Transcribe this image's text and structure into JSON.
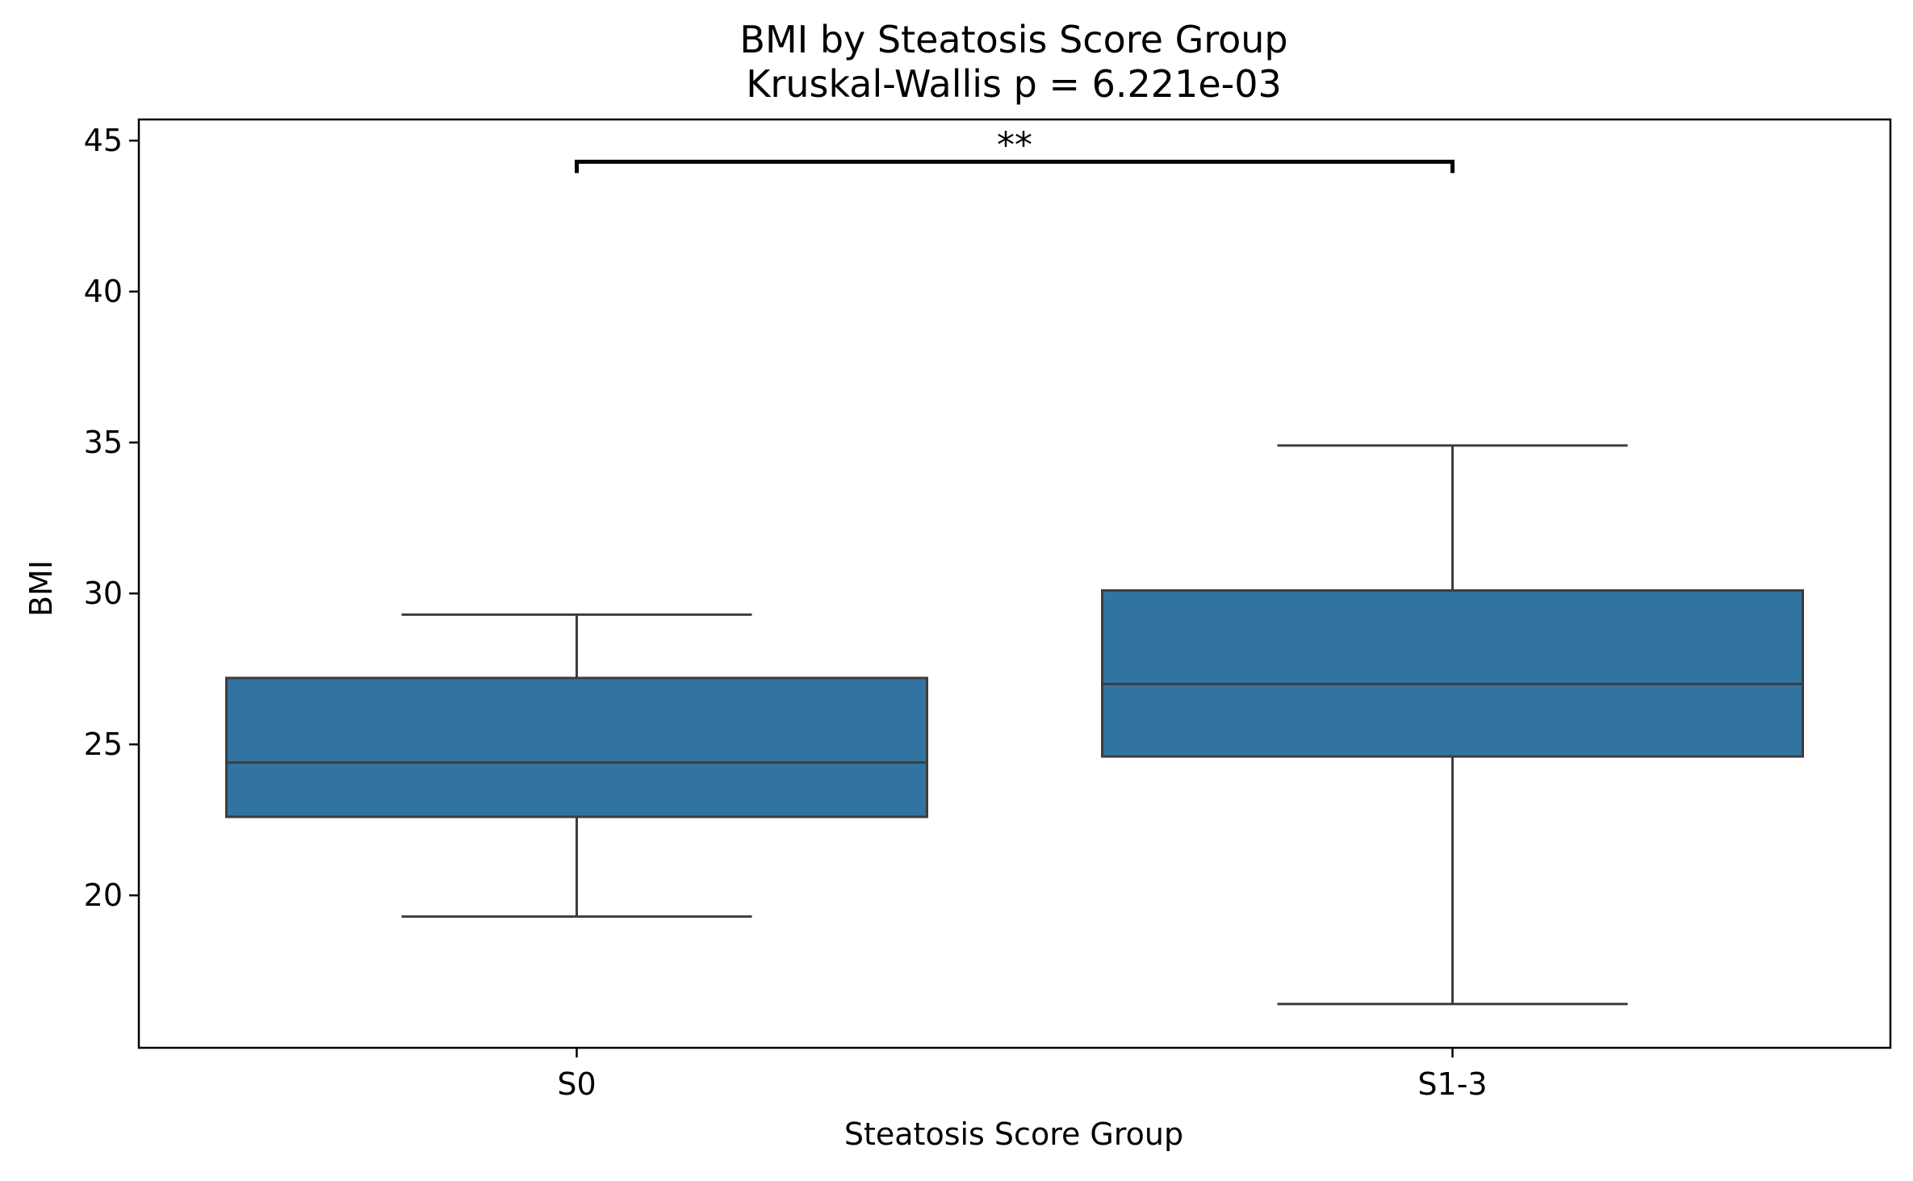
{
  "chart_data": {
    "type": "box",
    "title": "BMI by Steatosis Score Group",
    "subtitle": "Kruskal-Wallis p = 6.221e-03",
    "xlabel": "Steatosis Score Group",
    "ylabel": "BMI",
    "ylim": [
      14.95,
      45.7
    ],
    "yticks": [
      20,
      25,
      30,
      35,
      40,
      45
    ],
    "ytick_labels": [
      "20",
      "25",
      "30",
      "35",
      "40",
      "45"
    ],
    "categories": [
      "S0",
      "S1-3"
    ],
    "box_color": "#3274a1",
    "edge_color": "#3d3d3d",
    "grid": false,
    "boxes": [
      {
        "category": "S0",
        "whisker_low": 19.3,
        "q1": 22.6,
        "median": 24.4,
        "q3": 27.2,
        "whisker_high": 29.3
      },
      {
        "category": "S1-3",
        "whisker_low": 16.4,
        "q1": 24.6,
        "median": 27.0,
        "q3": 30.1,
        "whisker_high": 34.9
      }
    ],
    "annotations": [
      {
        "label": "**",
        "from": "S0",
        "to": "S1-3",
        "y": 44.3
      }
    ]
  }
}
